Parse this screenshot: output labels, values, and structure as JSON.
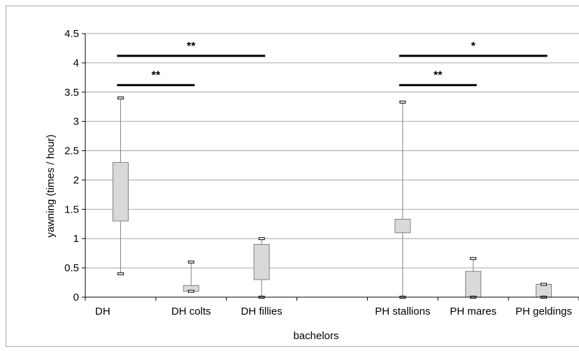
{
  "chart_data": {
    "type": "box",
    "xlabel": "bachelors",
    "ylabel": "yawning (times / hour)",
    "ylim": [
      0,
      4.5
    ],
    "yticks": [
      "0",
      "0.5",
      "1",
      "1.5",
      "2",
      "2.5",
      "3",
      "3.5",
      "4",
      "4.5"
    ],
    "grid": true,
    "categories": [
      "DH",
      "DH colts",
      "DH fillies",
      "",
      "PH stallions",
      "PH mares",
      "PH geldings"
    ],
    "boxes": [
      {
        "category": "DH",
        "min": 0.4,
        "q1": 1.3,
        "q3": 2.3,
        "max": 3.4
      },
      {
        "category": "DH colts",
        "min": 0.1,
        "q1": 0.1,
        "q3": 0.2,
        "max": 0.6
      },
      {
        "category": "DH fillies",
        "min": 0.0,
        "q1": 0.3,
        "q3": 0.9,
        "max": 1.0
      },
      {
        "category": "PH stallions",
        "min": 0.0,
        "q1": 1.1,
        "q3": 1.33,
        "max": 3.33
      },
      {
        "category": "PH mares",
        "min": 0.0,
        "q1": 0.0,
        "q3": 0.44,
        "max": 0.66
      },
      {
        "category": "PH geldings",
        "min": 0.0,
        "q1": 0.0,
        "q3": 0.22,
        "max": 0.22
      }
    ],
    "significance": [
      {
        "from": "DH",
        "to": "DH fillies",
        "y": 4.12,
        "label": "**"
      },
      {
        "from": "DH",
        "to": "DH colts",
        "y": 3.62,
        "label": "**"
      },
      {
        "from": "PH stallions",
        "to": "PH geldings",
        "y": 4.12,
        "label": "*"
      },
      {
        "from": "PH stallions",
        "to": "PH mares",
        "y": 3.62,
        "label": "**"
      }
    ],
    "colors": {
      "box_fill": "#d9d9d9",
      "box_stroke": "#808080",
      "grid": "#a6a6a6",
      "bars": "#000000"
    }
  }
}
